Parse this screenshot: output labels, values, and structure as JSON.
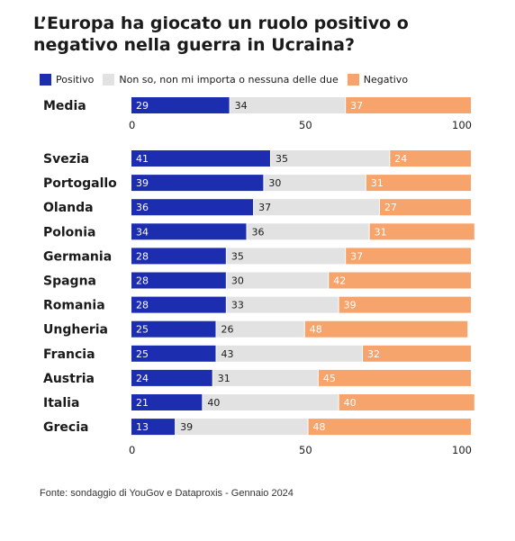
{
  "title": "L’Europa ha giocato un ruolo positivo o negativo nella guerra in Ucraina?",
  "source": "Fonte: sondaggio di YouGov e Dataproxis - Gennaio 2024",
  "colors": {
    "positivo": "#1c2db0",
    "neutro": "#e2e2e2",
    "negativo": "#f7a36c"
  },
  "legend": [
    {
      "label": "Positivo",
      "color_key": "positivo"
    },
    {
      "label": "Non so, non mi importa o nessuna delle due",
      "color_key": "neutro"
    },
    {
      "label": "Negativo",
      "color_key": "negativo"
    }
  ],
  "chart_data": {
    "type": "bar",
    "orientation": "horizontal",
    "stacked": true,
    "title": "L’Europa ha giocato un ruolo positivo o negativo nella guerra in Ucraina?",
    "xlim": [
      0,
      100
    ],
    "xticks": [
      "0",
      "50",
      "100"
    ],
    "summary": {
      "category": "Media",
      "values": [
        29,
        34,
        37
      ]
    },
    "categories": [
      "Svezia",
      "Portogallo",
      "Olanda",
      "Polonia",
      "Germania",
      "Spagna",
      "Romania",
      "Ungheria",
      "Francia",
      "Austria",
      "Italia",
      "Grecia"
    ],
    "series": [
      {
        "name": "Positivo",
        "values": [
          41,
          39,
          36,
          34,
          28,
          28,
          28,
          25,
          25,
          24,
          21,
          13
        ]
      },
      {
        "name": "Non so, non mi importa o nessuna delle due",
        "values": [
          35,
          30,
          37,
          36,
          35,
          30,
          33,
          26,
          43,
          31,
          40,
          39
        ]
      },
      {
        "name": "Negativo",
        "values": [
          24,
          31,
          27,
          31,
          37,
          42,
          39,
          48,
          32,
          45,
          40,
          48
        ]
      }
    ]
  }
}
